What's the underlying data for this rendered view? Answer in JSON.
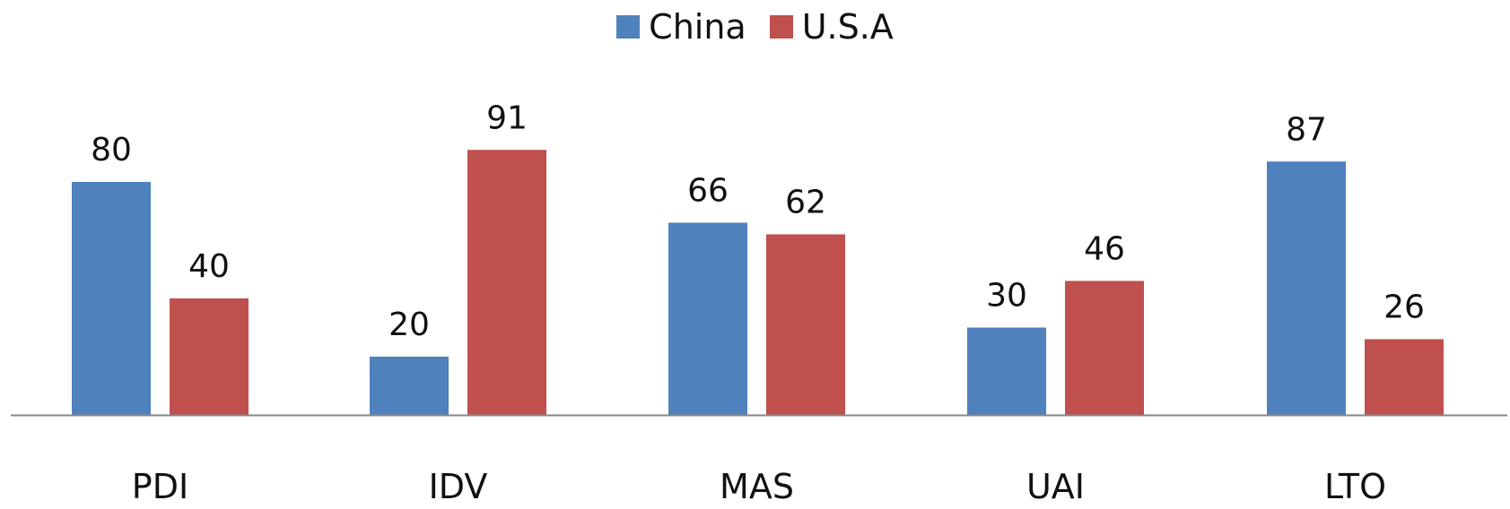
{
  "chart_data": {
    "type": "bar",
    "categories": [
      "PDI",
      "IDV",
      "MAS",
      "UAI",
      "LTO"
    ],
    "series": [
      {
        "name": "China",
        "color": "#4F81BD",
        "values": [
          80,
          20,
          66,
          30,
          87
        ]
      },
      {
        "name": "U.S.A",
        "color": "#C0504D",
        "values": [
          40,
          91,
          62,
          46,
          26
        ]
      }
    ],
    "data_labels": true,
    "legend_position": "top-center",
    "grid": false,
    "ylim": [
      0,
      100
    ],
    "axis_line_color": "#868686"
  }
}
